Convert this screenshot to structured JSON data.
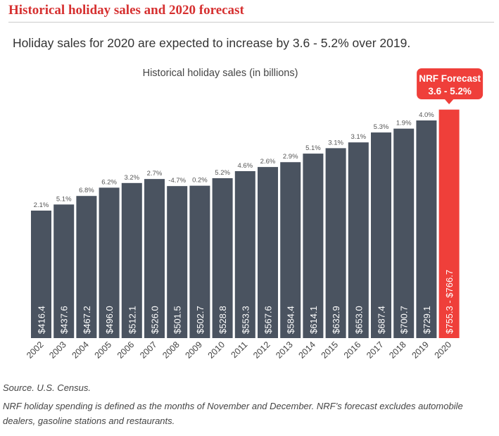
{
  "title": "Historical holiday sales and 2020 forecast",
  "subtitle": "Holiday sales for 2020 are expected to increase by 3.6 - 5.2% over 2019.",
  "chart_data": {
    "type": "bar",
    "title": "Historical holiday sales (in billions)",
    "categories": [
      "2002",
      "2003",
      "2004",
      "2005",
      "2006",
      "2007",
      "2008",
      "2009",
      "2010",
      "2011",
      "2012",
      "2013",
      "2014",
      "2015",
      "2016",
      "2017",
      "2018",
      "2019",
      "2020"
    ],
    "values": [
      416.4,
      437.6,
      467.2,
      496.0,
      512.1,
      526.0,
      501.5,
      502.7,
      528.8,
      553.3,
      567.6,
      584.4,
      614.1,
      632.9,
      653.0,
      687.4,
      700.7,
      729.1,
      766.7
    ],
    "value_labels": [
      "$416.4",
      "$437.6",
      "$467.2",
      "$496.0",
      "$512.1",
      "$526.0",
      "$501.5",
      "$502.7",
      "$528.8",
      "$553.3",
      "$567.6",
      "$584.4",
      "$614.1",
      "$632.9",
      "$653.0",
      "$687.4",
      "$700.7",
      "$729.1",
      "$755.3 - $766.7"
    ],
    "growth_labels": [
      "2.1%",
      "5.1%",
      "6.8%",
      "6.2%",
      "3.2%",
      "2.7%",
      "-4.7%",
      "0.2%",
      "5.2%",
      "4.6%",
      "2.6%",
      "2.9%",
      "5.1%",
      "3.1%",
      "3.1%",
      "5.3%",
      "1.9%",
      "4.0%",
      ""
    ],
    "forecast": {
      "category": "2020",
      "range": [
        755.3,
        766.7
      ],
      "callout_title": "NRF Forecast",
      "callout_value": "3.6 - 5.2%"
    },
    "colors": {
      "bar": "#4a5360",
      "forecast": "#ef3f3a",
      "bar_label": "#ffffff",
      "growth_label": "#555555",
      "axis_label": "#444444"
    },
    "y_scale": "truncated baseline",
    "grid": false,
    "legend": "none"
  },
  "source": "Source. U.S. Census.",
  "note": "NRF holiday spending is defined as the months of November and December. NRF’s forecast excludes automobile dealers, gasoline stations and restaurants."
}
